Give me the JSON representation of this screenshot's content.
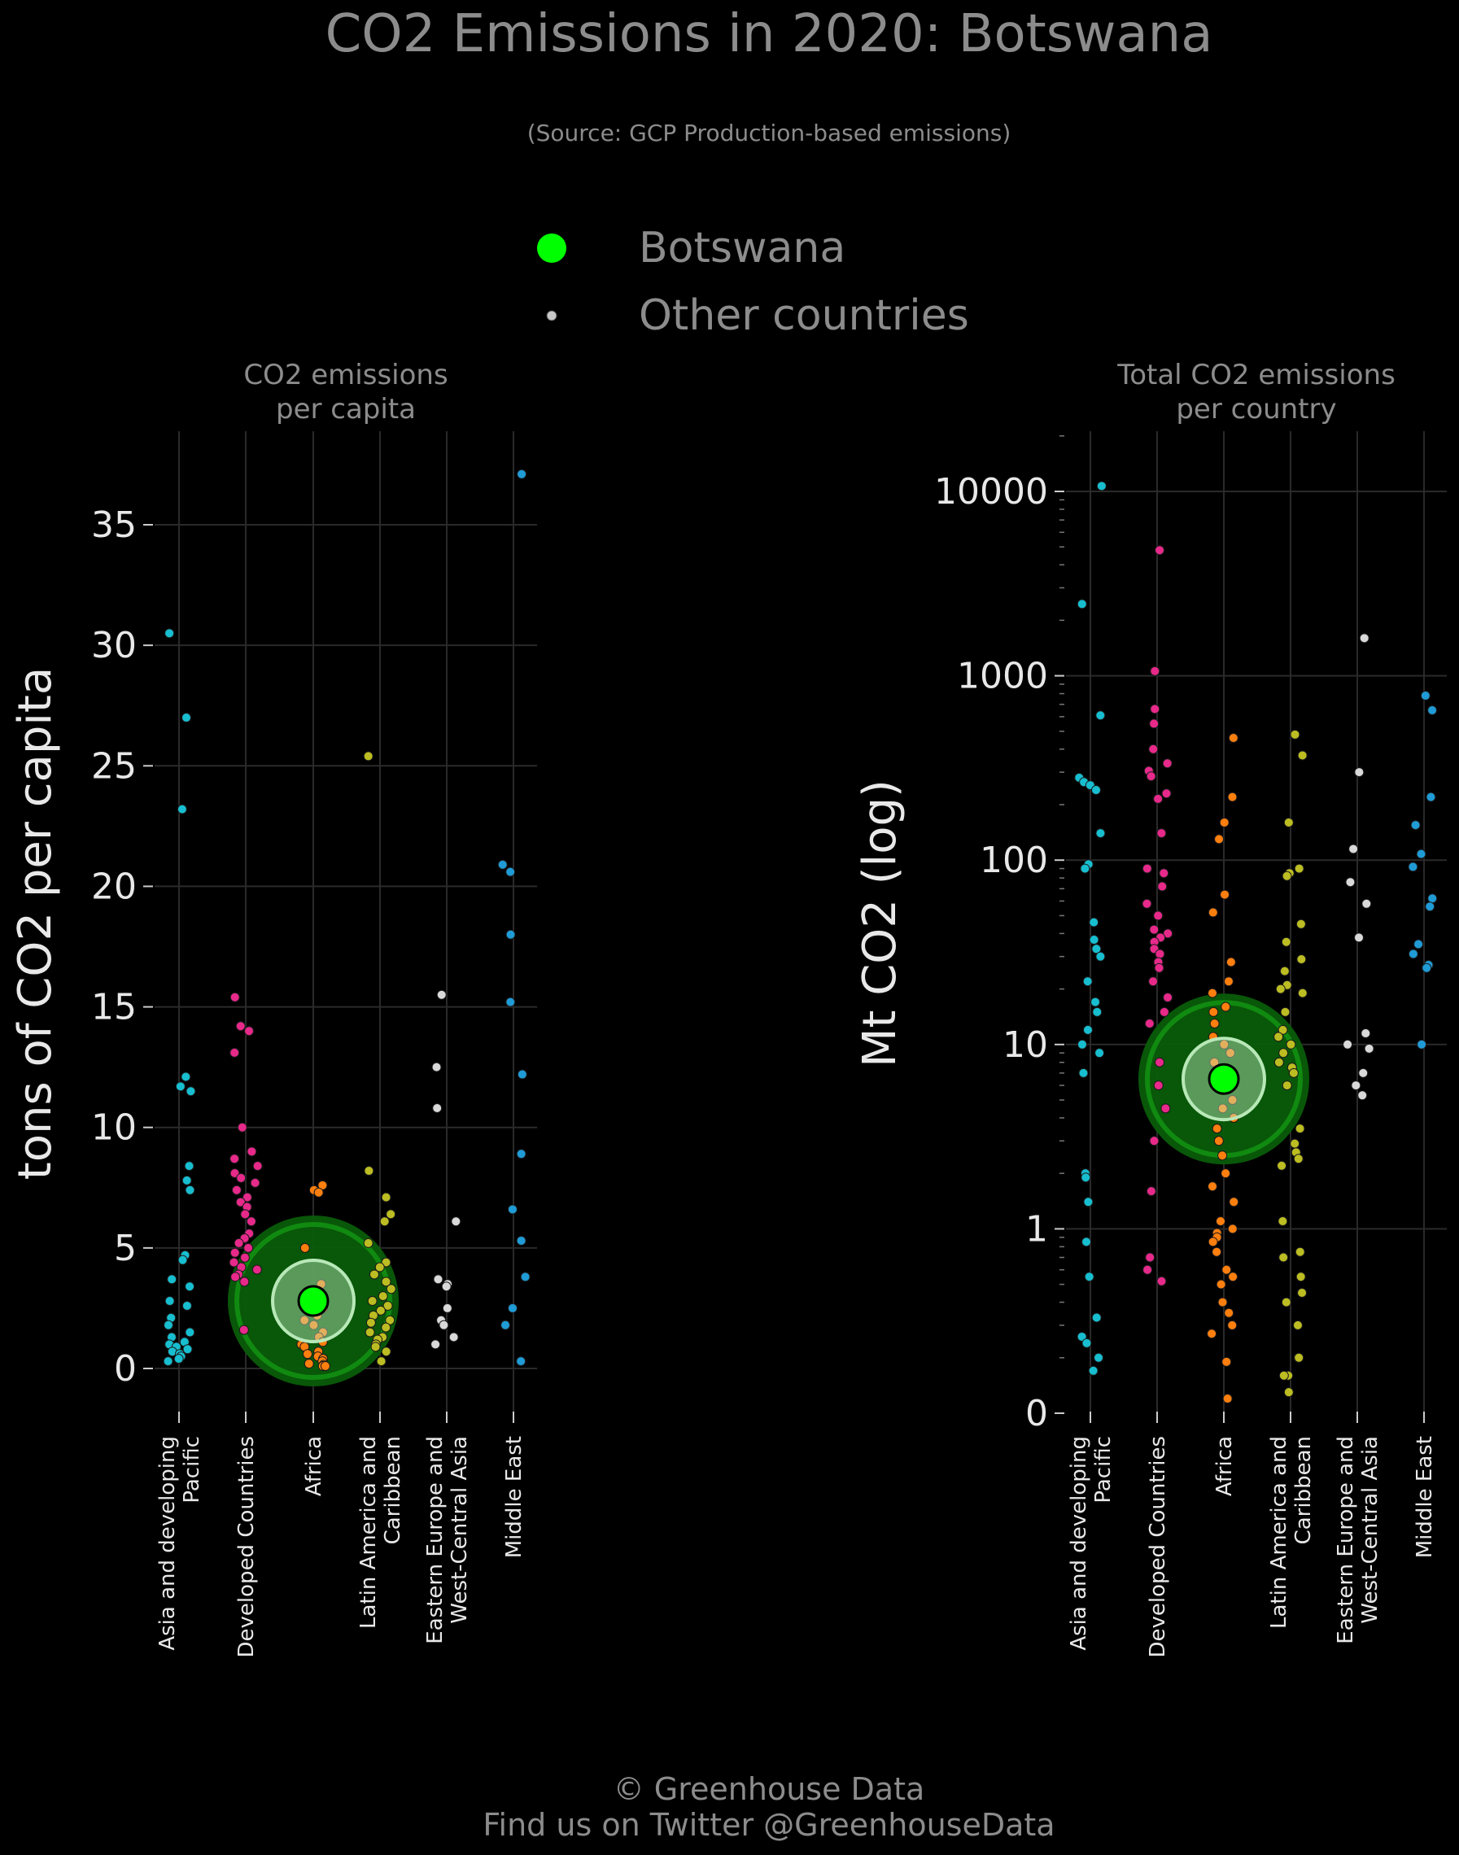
{
  "header": {
    "title": "CO2 Emissions in 2020: Botswana",
    "subtitle": "(Source: GCP Production-based emissions)"
  },
  "legend": {
    "placement": "top-center",
    "items": [
      {
        "label": "Botswana",
        "color": "#00ff00",
        "icon": "large-circle-icon"
      },
      {
        "label": "Other countries",
        "color": "#c8c8c8",
        "icon": "small-circle-icon"
      }
    ]
  },
  "footer": {
    "line1": "© Greenhouse Data",
    "line2": "Find us on Twitter @GreenhouseData"
  },
  "colors": {
    "background": "#000000",
    "grid": "#2a2a2a",
    "highlight": "#00ff00",
    "halo": "#0b6a0b",
    "text": "#8c8c8c"
  },
  "chart_data": [
    {
      "type": "scatter",
      "title": "CO2 emissions\nper capita",
      "ylabel": "tons of CO2 per capita",
      "ylim": [
        -1.5,
        39
      ],
      "yscale": "linear",
      "yticks": [
        0,
        5,
        10,
        15,
        20,
        25,
        30,
        35
      ],
      "ytick_labels": [
        "0",
        "5",
        "10",
        "15",
        "20",
        "25",
        "30",
        "35"
      ],
      "grid": true,
      "categories": [
        "Asia and developing\nPacific",
        "Developed Countries",
        "Africa",
        "Latin America and\nCaribbean",
        "Eastern Europe and\nWest-Central Asia",
        "Middle East"
      ],
      "series": [
        {
          "category": "Asia and developing\nPacific",
          "color": "#17becf",
          "values": [
            30.5,
            27.0,
            23.2,
            12.1,
            11.7,
            11.5,
            8.4,
            7.8,
            7.4,
            4.7,
            4.5,
            3.7,
            3.4,
            2.8,
            2.6,
            2.1,
            1.8,
            1.5,
            1.3,
            1.1,
            1.0,
            0.9,
            0.8,
            0.7,
            0.6,
            0.5,
            0.4,
            0.3
          ]
        },
        {
          "category": "Developed Countries",
          "color": "#e7298a",
          "values": [
            15.4,
            14.2,
            14.0,
            13.1,
            10.0,
            9.0,
            8.7,
            8.4,
            8.1,
            7.9,
            7.7,
            7.4,
            7.1,
            6.9,
            6.7,
            6.4,
            6.1,
            5.6,
            5.4,
            5.2,
            5.0,
            4.8,
            4.6,
            4.4,
            4.2,
            4.1,
            3.9,
            3.8,
            3.6,
            1.6
          ]
        },
        {
          "category": "Africa",
          "color": "#ff7f0e",
          "values": [
            7.6,
            7.4,
            7.3,
            5.0,
            3.5,
            3.2,
            2.9,
            2.5,
            2.2,
            2.0,
            1.8,
            1.5,
            1.3,
            1.1,
            1.0,
            0.9,
            0.7,
            0.6,
            0.5,
            0.4,
            0.3,
            0.2,
            0.15,
            0.1,
            0.1
          ]
        },
        {
          "category": "Latin America and\nCaribbean",
          "color": "#bcbd22",
          "values": [
            25.4,
            8.2,
            7.1,
            6.4,
            6.1,
            5.2,
            4.4,
            4.2,
            3.9,
            3.6,
            3.3,
            3.0,
            2.8,
            2.6,
            2.4,
            2.2,
            2.0,
            1.9,
            1.7,
            1.5,
            1.3,
            1.2,
            1.0,
            0.9,
            0.7,
            0.3
          ]
        },
        {
          "category": "Eastern Europe and\nWest-Central Asia",
          "color": "#d9d9d9",
          "values": [
            15.5,
            12.5,
            10.8,
            6.1,
            3.7,
            3.5,
            3.4,
            2.5,
            2.0,
            1.8,
            1.3,
            1.0
          ]
        },
        {
          "category": "Middle East",
          "color": "#1f9bd6",
          "values": [
            37.1,
            20.9,
            20.6,
            18.0,
            15.2,
            12.2,
            8.9,
            6.6,
            5.3,
            3.8,
            2.5,
            1.8,
            0.3
          ]
        }
      ],
      "highlight": {
        "label": "Botswana",
        "category": "Africa",
        "value": 2.8
      }
    },
    {
      "type": "scatter",
      "title": "Total CO2 emissions\nper country",
      "ylabel": "Mt CO2 (log)",
      "yscale": "log",
      "ylim": [
        0.1,
        20000
      ],
      "yticks": [
        0.1,
        1,
        10,
        100,
        1000,
        10000
      ],
      "ytick_labels": [
        "0",
        "1",
        "10",
        "100",
        "1000",
        "10000"
      ],
      "grid": true,
      "categories": [
        "Asia and developing\nPacific",
        "Developed Countries",
        "Africa",
        "Latin America and\nCaribbean",
        "Eastern Europe and\nWest-Central Asia",
        "Middle East"
      ],
      "series": [
        {
          "category": "Asia and developing\nPacific",
          "color": "#17becf",
          "values": [
            10700,
            2450,
            610,
            280,
            265,
            255,
            240,
            140,
            95,
            90,
            46,
            37,
            33,
            30,
            22,
            17,
            15,
            12,
            10,
            9,
            7,
            2,
            1.9,
            1.4,
            0.85,
            0.55,
            0.33,
            0.26,
            0.24,
            0.2,
            0.17
          ]
        },
        {
          "category": "Developed Countries",
          "color": "#e7298a",
          "values": [
            4800,
            1060,
            660,
            550,
            400,
            335,
            305,
            285,
            230,
            215,
            140,
            90,
            85,
            72,
            58,
            50,
            42,
            40,
            38,
            36,
            33,
            31,
            28,
            26,
            22,
            18,
            15,
            13,
            8,
            6,
            4.5,
            3,
            1.6,
            0.7,
            0.6,
            0.52
          ]
        },
        {
          "category": "Africa",
          "color": "#ff7f0e",
          "values": [
            460,
            220,
            160,
            130,
            65,
            52,
            28,
            22,
            19,
            16,
            15,
            13,
            11,
            10,
            9,
            8,
            7,
            6,
            5,
            4.5,
            4,
            3.5,
            3,
            2.5,
            2,
            1.7,
            1.4,
            1.1,
            1.0,
            0.95,
            0.9,
            0.85,
            0.75,
            0.6,
            0.55,
            0.5,
            0.4,
            0.35,
            0.3,
            0.27,
            0.19,
            0.12
          ]
        },
        {
          "category": "Latin America and\nCaribbean",
          "color": "#bcbd22",
          "values": [
            480,
            370,
            160,
            90,
            85,
            82,
            45,
            36,
            29,
            25,
            21,
            20,
            19,
            15,
            12,
            11,
            10,
            9,
            8,
            7.5,
            7,
            6,
            3.5,
            2.9,
            2.6,
            2.4,
            2.2,
            1.1,
            0.75,
            0.7,
            0.55,
            0.45,
            0.4,
            0.3,
            0.2,
            0.2,
            0.16,
            0.16,
            0.13
          ]
        },
        {
          "category": "Eastern Europe and\nWest-Central Asia",
          "color": "#d9d9d9",
          "values": [
            1600,
            300,
            115,
            76,
            58,
            38,
            11.5,
            10,
            9.5,
            7,
            6,
            5.3
          ]
        },
        {
          "category": "Middle East",
          "color": "#1f9bd6",
          "values": [
            780,
            650,
            220,
            155,
            108,
            92,
            62,
            56,
            35,
            31,
            27,
            26,
            10
          ]
        }
      ],
      "highlight": {
        "label": "Botswana",
        "category": "Africa",
        "value": 6.5
      }
    }
  ]
}
